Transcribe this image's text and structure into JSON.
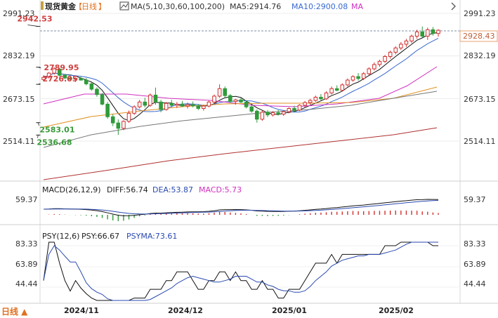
{
  "chart_data": {
    "type": "candlestick",
    "instrument": "现货黄金",
    "period": "日线",
    "period_menu": "日线 ▲",
    "main_legend": {
      "ma_label": "MA(5,10,30,60,100,200)",
      "ma5_label": "MA5:2914.76",
      "ma10_label": "MA10:2900.08",
      "ma_more": "MA"
    },
    "price_axis": {
      "ticks": [
        "2991.23",
        "2832.19",
        "2673.15",
        "2514.11"
      ],
      "last": "2928.43"
    },
    "price_ticks_num": [
      2991.23,
      2832.19,
      2673.15,
      2514.11
    ],
    "annotations": {
      "high1": "2789.95",
      "high2": "2726.05",
      "high3": "2942.53",
      "low1": "2536.68",
      "low2": "2583.01"
    },
    "x_axis": {
      "labels": [
        "2024/11",
        "2024/12",
        "2025/01",
        "2025/02"
      ]
    },
    "macd": {
      "label": "MACD(26,12,9)",
      "diff": "DIFF:56.74",
      "dea": "DEA:53.87",
      "macd": "MACD:5.73",
      "tick": "59.37"
    },
    "psy": {
      "label": "PSY(12,6)",
      "psy": "PSY:66.67",
      "psyma": "PSYMA:73.61",
      "ticks": [
        "83.33",
        "63.89",
        "44.44"
      ],
      "ticks_num": [
        83.33,
        63.89,
        44.44
      ]
    },
    "ohlc": [
      [
        2744,
        2760,
        2738,
        2752
      ],
      [
        2753,
        2772,
        2748,
        2768
      ],
      [
        2768,
        2790,
        2762,
        2784
      ],
      [
        2783,
        2788,
        2755,
        2760
      ],
      [
        2760,
        2765,
        2745,
        2750
      ],
      [
        2750,
        2758,
        2738,
        2745
      ],
      [
        2745,
        2752,
        2735,
        2748
      ],
      [
        2748,
        2755,
        2740,
        2742
      ],
      [
        2742,
        2750,
        2722,
        2728
      ],
      [
        2728,
        2734,
        2702,
        2708
      ],
      [
        2708,
        2715,
        2680,
        2688
      ],
      [
        2688,
        2694,
        2648,
        2652
      ],
      [
        2652,
        2660,
        2598,
        2605
      ],
      [
        2605,
        2615,
        2570,
        2582
      ],
      [
        2582,
        2595,
        2537,
        2562
      ],
      [
        2562,
        2592,
        2555,
        2588
      ],
      [
        2588,
        2628,
        2582,
        2618
      ],
      [
        2618,
        2648,
        2612,
        2642
      ],
      [
        2642,
        2668,
        2636,
        2660
      ],
      [
        2660,
        2676,
        2640,
        2648
      ],
      [
        2648,
        2692,
        2642,
        2686
      ],
      [
        2686,
        2714,
        2650,
        2660
      ],
      [
        2660,
        2668,
        2622,
        2632
      ],
      [
        2632,
        2660,
        2628,
        2655
      ],
      [
        2655,
        2668,
        2640,
        2648
      ],
      [
        2648,
        2660,
        2638,
        2652
      ],
      [
        2652,
        2664,
        2642,
        2645
      ],
      [
        2645,
        2658,
        2636,
        2650
      ],
      [
        2650,
        2662,
        2640,
        2646
      ],
      [
        2646,
        2652,
        2630,
        2636
      ],
      [
        2636,
        2650,
        2628,
        2645
      ],
      [
        2645,
        2665,
        2640,
        2660
      ],
      [
        2660,
        2688,
        2654,
        2682
      ],
      [
        2682,
        2726,
        2676,
        2710
      ],
      [
        2710,
        2718,
        2676,
        2684
      ],
      [
        2684,
        2690,
        2656,
        2662
      ],
      [
        2662,
        2672,
        2650,
        2668
      ],
      [
        2668,
        2676,
        2656,
        2660
      ],
      [
        2660,
        2666,
        2636,
        2642
      ],
      [
        2642,
        2650,
        2620,
        2626
      ],
      [
        2626,
        2632,
        2583,
        2596
      ],
      [
        2596,
        2628,
        2590,
        2622
      ],
      [
        2622,
        2630,
        2604,
        2612
      ],
      [
        2612,
        2626,
        2606,
        2620
      ],
      [
        2620,
        2630,
        2610,
        2615
      ],
      [
        2615,
        2628,
        2608,
        2624
      ],
      [
        2624,
        2640,
        2618,
        2636
      ],
      [
        2636,
        2646,
        2622,
        2630
      ],
      [
        2630,
        2652,
        2626,
        2648
      ],
      [
        2648,
        2664,
        2640,
        2658
      ],
      [
        2658,
        2672,
        2650,
        2666
      ],
      [
        2666,
        2684,
        2660,
        2678
      ],
      [
        2678,
        2690,
        2666,
        2672
      ],
      [
        2672,
        2700,
        2668,
        2694
      ],
      [
        2694,
        2718,
        2688,
        2710
      ],
      [
        2710,
        2722,
        2700,
        2704
      ],
      [
        2704,
        2730,
        2700,
        2724
      ],
      [
        2724,
        2748,
        2718,
        2742
      ],
      [
        2742,
        2760,
        2736,
        2755
      ],
      [
        2755,
        2768,
        2740,
        2748
      ],
      [
        2748,
        2772,
        2742,
        2766
      ],
      [
        2766,
        2790,
        2760,
        2784
      ],
      [
        2784,
        2808,
        2778,
        2800
      ],
      [
        2800,
        2818,
        2792,
        2812
      ],
      [
        2812,
        2836,
        2806,
        2830
      ],
      [
        2830,
        2852,
        2822,
        2846
      ],
      [
        2846,
        2868,
        2838,
        2862
      ],
      [
        2862,
        2884,
        2854,
        2876
      ],
      [
        2876,
        2896,
        2866,
        2888
      ],
      [
        2888,
        2912,
        2880,
        2906
      ],
      [
        2906,
        2930,
        2896,
        2922
      ],
      [
        2922,
        2942,
        2900,
        2906
      ],
      [
        2906,
        2938,
        2892,
        2930
      ],
      [
        2930,
        2940,
        2908,
        2916
      ],
      [
        2916,
        2932,
        2904,
        2928
      ]
    ]
  }
}
